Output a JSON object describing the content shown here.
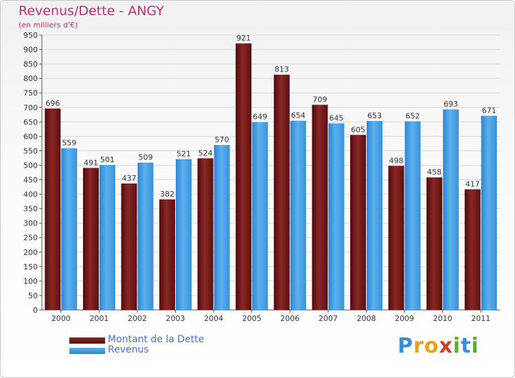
{
  "title": "Revenus/Dette - ANGY",
  "subtitle": "(en milliers d'€)",
  "colors": {
    "dette": "#7a1a1a",
    "revenus": "#3d9be3",
    "title": "#c0306a",
    "legend_text": "#4a6fd6"
  },
  "legend": [
    {
      "label": "Montant de la Dette"
    },
    {
      "label": "Revenus"
    }
  ],
  "logo": {
    "text": "Proxiti",
    "letters": [
      "P",
      "r",
      "o",
      "x",
      "i",
      "t",
      "i"
    ]
  },
  "chart_data": {
    "type": "bar",
    "title": "Revenus/Dette - ANGY",
    "subtitle": "(en milliers d'€)",
    "categories": [
      "2000",
      "2001",
      "2002",
      "2003",
      "2004",
      "2005",
      "2006",
      "2007",
      "2008",
      "2009",
      "2010",
      "2011"
    ],
    "series": [
      {
        "name": "Montant de la Dette",
        "values": [
          696,
          491,
          437,
          382,
          524,
          921,
          813,
          709,
          605,
          498,
          458,
          417
        ]
      },
      {
        "name": "Revenus",
        "values": [
          559,
          501,
          509,
          521,
          570,
          649,
          654,
          645,
          653,
          652,
          693,
          671
        ]
      }
    ],
    "ylim": [
      0,
      950
    ],
    "yticks": [
      0,
      50,
      100,
      150,
      200,
      250,
      300,
      350,
      400,
      450,
      500,
      550,
      600,
      650,
      700,
      750,
      800,
      850,
      900,
      950
    ],
    "grid": true,
    "legend_position": "bottom-left"
  }
}
